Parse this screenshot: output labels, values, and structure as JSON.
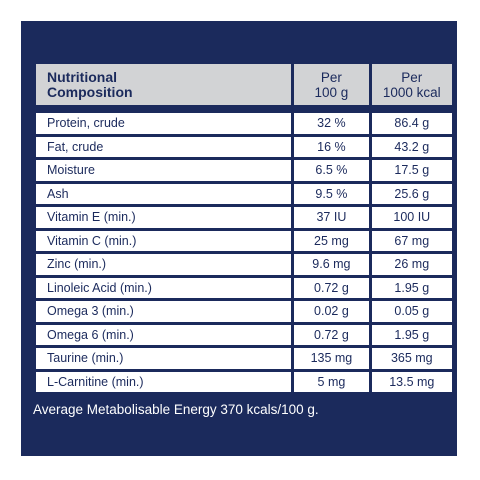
{
  "header": {
    "composition_line1": "Nutritional",
    "composition_line2": "Composition",
    "per100_line1": "Per",
    "per100_line2": "100 g",
    "perkcal_line1": "Per",
    "perkcal_line2": "1000 kcal"
  },
  "rows": [
    {
      "name": "Protein, crude",
      "per100": "32 %",
      "perkcal": "86.4 g"
    },
    {
      "name": "Fat, crude",
      "per100": "16 %",
      "perkcal": "43.2 g"
    },
    {
      "name": "Moisture",
      "per100": "6.5 %",
      "perkcal": "17.5 g"
    },
    {
      "name": "Ash",
      "per100": "9.5 %",
      "perkcal": "25.6 g"
    },
    {
      "name": "Vitamin E (min.)",
      "per100": "37 IU",
      "perkcal": "100 IU"
    },
    {
      "name": "Vitamin C (min.)",
      "per100": "25 mg",
      "perkcal": "67 mg"
    },
    {
      "name": "Zinc (min.)",
      "per100": "9.6 mg",
      "perkcal": "26 mg"
    },
    {
      "name": "Linoleic Acid (min.)",
      "per100": "0.72 g",
      "perkcal": "1.95 g"
    },
    {
      "name": "Omega 3 (min.)",
      "per100": "0.02 g",
      "perkcal": "0.05 g"
    },
    {
      "name": "Omega 6 (min.)",
      "per100": "0.72 g",
      "perkcal": "1.95 g"
    },
    {
      "name": "Taurine (min.)",
      "per100": "135 mg",
      "perkcal": "365 mg"
    },
    {
      "name": "L-Carnitine (min.)",
      "per100": "5 mg",
      "perkcal": "13.5 mg"
    }
  ],
  "footer": "Average Metabolisable Energy 370 kcals/100 g.",
  "colors": {
    "panel_background": "#1b2a5c",
    "header_background": "#d2d3d5",
    "cell_background": "#ffffff",
    "text": "#1b2a5c"
  }
}
